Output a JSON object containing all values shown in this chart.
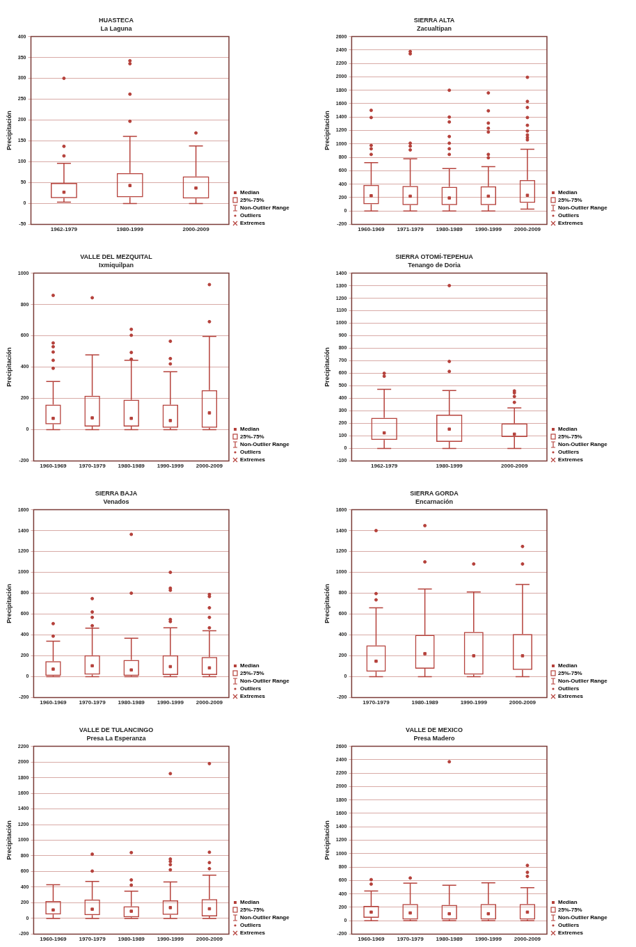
{
  "chart_data": [
    {
      "type": "box",
      "title": "HUASTECA",
      "subtitle": "La Laguna",
      "ylabel": "Precipitación",
      "color": "#b5413b",
      "grid": "y",
      "categories": [
        "1962-1979",
        "1980-1999",
        "2000-2009"
      ],
      "boxes": [
        {
          "low": 3,
          "q1": 13,
          "median": 27,
          "q3": 49,
          "high": 96,
          "outliers": [
            114,
            137,
            300
          ]
        },
        {
          "low": 0,
          "q1": 15,
          "median": 43,
          "q3": 73,
          "high": 161,
          "outliers": [
            197,
            262,
            335,
            342
          ]
        },
        {
          "low": 0,
          "q1": 12,
          "median": 37,
          "q3": 65,
          "high": 138,
          "outliers": [
            169
          ]
        }
      ],
      "ylim": [
        -50,
        400
      ],
      "yticks": [
        -50,
        0,
        50,
        100,
        150,
        200,
        250,
        300,
        350,
        400
      ],
      "annotations": [
        "Median",
        "25%-75%",
        "Non-Outlier Range",
        "Outliers",
        "Extremes"
      ]
    },
    {
      "type": "box",
      "title": "SIERRA ALTA",
      "subtitle": "Zacualtipan",
      "ylabel": "Precipitación",
      "color": "#b5413b",
      "grid": "y",
      "categories": [
        "1960-1969",
        "1971-1979",
        "1980-1989",
        "1990-1999",
        "2000-2009"
      ],
      "boxes": [
        {
          "low": 0,
          "q1": 100,
          "median": 227,
          "q3": 387,
          "high": 720,
          "outliers": [
            843,
            927,
            977,
            1393,
            1500
          ]
        },
        {
          "low": 0,
          "q1": 87,
          "median": 220,
          "q3": 373,
          "high": 777,
          "outliers": [
            910,
            967,
            1010,
            2343,
            2377
          ]
        },
        {
          "low": 0,
          "q1": 87,
          "median": 193,
          "q3": 360,
          "high": 633,
          "outliers": [
            843,
            927,
            1010,
            1110,
            1327,
            1400,
            1800
          ]
        },
        {
          "low": 0,
          "q1": 87,
          "median": 220,
          "q3": 367,
          "high": 660,
          "outliers": [
            793,
            843,
            1177,
            1233,
            1310,
            1493,
            1760
          ]
        },
        {
          "low": 27,
          "q1": 120,
          "median": 233,
          "q3": 460,
          "high": 920,
          "outliers": [
            1060,
            1093,
            1133,
            1193,
            1277,
            1393,
            1543,
            1633,
            1993
          ]
        }
      ],
      "ylim": [
        -200,
        2600
      ],
      "yticks": [
        -200,
        0,
        200,
        400,
        600,
        800,
        1000,
        1200,
        1400,
        1600,
        1800,
        2000,
        2200,
        2400,
        2600
      ],
      "annotations": [
        "Median",
        "25%-75%",
        "Non-Outlier Range",
        "Outliers",
        "Extremes"
      ]
    },
    {
      "type": "box",
      "title": "VALLE DEL MEZQUITAL",
      "subtitle": "Ixmiquilpan",
      "ylabel": "Precipitación",
      "color": "#b5413b",
      "grid": "y",
      "categories": [
        "1960-1969",
        "1970-1979",
        "1980-1989",
        "1990-1999",
        "2000-2009"
      ],
      "boxes": [
        {
          "low": 0,
          "q1": 34,
          "median": 72,
          "q3": 160,
          "high": 308,
          "outliers": [
            392,
            443,
            496,
            530,
            554,
            858
          ]
        },
        {
          "low": 0,
          "q1": 20,
          "median": 75,
          "q3": 217,
          "high": 478,
          "outliers": [
            843
          ]
        },
        {
          "low": 0,
          "q1": 20,
          "median": 72,
          "q3": 191,
          "high": 443,
          "outliers": [
            450,
            493,
            603,
            641
          ]
        },
        {
          "low": 0,
          "q1": 12,
          "median": 58,
          "q3": 160,
          "high": 370,
          "outliers": [
            420,
            454,
            565
          ]
        },
        {
          "low": 0,
          "q1": 12,
          "median": 107,
          "q3": 252,
          "high": 596,
          "outliers": [
            690,
            927
          ]
        }
      ],
      "ylim": [
        -200,
        1000
      ],
      "yticks": [
        -200,
        0,
        200,
        400,
        600,
        800,
        1000
      ],
      "annotations": [
        "Median",
        "25%-75%",
        "Non-Outlier Range",
        "Outliers",
        "Extremes"
      ]
    },
    {
      "type": "box",
      "title": "SIERRA OTOMÍ-TEPEHUA",
      "subtitle": "Tenango de Doria",
      "ylabel": "Precipitación",
      "color": "#b5413b",
      "grid": "y",
      "categories": [
        "1962-1979",
        "1980-1999",
        "2000-2009"
      ],
      "boxes": [
        {
          "low": 0,
          "q1": 67,
          "median": 124,
          "q3": 244,
          "high": 472,
          "outliers": [
            577,
            600
          ]
        },
        {
          "low": 0,
          "q1": 53,
          "median": 154,
          "q3": 269,
          "high": 463,
          "outliers": [
            615,
            695,
            1301
          ]
        },
        {
          "low": 0,
          "q1": 91,
          "median": 114,
          "q3": 200,
          "high": 324,
          "outliers": [
            368,
            415,
            444,
            459
          ]
        }
      ],
      "ylim": [
        -100,
        1400
      ],
      "yticks": [
        -100,
        0,
        100,
        200,
        300,
        400,
        500,
        600,
        700,
        800,
        900,
        1000,
        1100,
        1200,
        1300,
        1400
      ],
      "annotations": [
        "Median",
        "25%-75%",
        "Non-Outlier Range",
        "Outliers",
        "Extremes"
      ]
    },
    {
      "type": "box",
      "title": "SIERRA BAJA",
      "subtitle": "Venados",
      "ylabel": "Precipitación",
      "color": "#b5413b",
      "grid": "y",
      "categories": [
        "1960-1969",
        "1970-1979",
        "1980-1989",
        "1990-1999",
        "2000-2009"
      ],
      "boxes": [
        {
          "low": 0,
          "q1": 8,
          "median": 72,
          "q3": 148,
          "high": 340,
          "outliers": [
            388,
            508
          ]
        },
        {
          "low": 0,
          "q1": 20,
          "median": 104,
          "q3": 204,
          "high": 464,
          "outliers": [
            488,
            568,
            620,
            748
          ]
        },
        {
          "low": 0,
          "q1": 8,
          "median": 64,
          "q3": 160,
          "high": 368,
          "outliers": [
            800,
            1364
          ]
        },
        {
          "low": 0,
          "q1": 16,
          "median": 96,
          "q3": 204,
          "high": 468,
          "outliers": [
            528,
            548,
            828,
            848,
            1000
          ]
        },
        {
          "low": 0,
          "q1": 16,
          "median": 84,
          "q3": 188,
          "high": 440,
          "outliers": [
            468,
            568,
            660,
            768,
            788
          ]
        }
      ],
      "ylim": [
        -200,
        1600
      ],
      "yticks": [
        -200,
        0,
        200,
        400,
        600,
        800,
        1000,
        1200,
        1400,
        1600
      ],
      "annotations": [
        "Median",
        "25%-75%",
        "Non-Outlier Range",
        "Outliers",
        "Extremes"
      ]
    },
    {
      "type": "box",
      "title": "SIERRA GORDA",
      "subtitle": "Encarnación",
      "ylabel": "Precipitación",
      "color": "#b5413b",
      "grid": "y",
      "categories": [
        "1970-1979",
        "1980-1989",
        "1990-1999",
        "2000-2009"
      ],
      "boxes": [
        {
          "low": 0,
          "q1": 48,
          "median": 148,
          "q3": 300,
          "high": 660,
          "outliers": [
            736,
            796,
            1400
          ]
        },
        {
          "low": 0,
          "q1": 76,
          "median": 220,
          "q3": 400,
          "high": 840,
          "outliers": [
            1100,
            1448
          ]
        },
        {
          "low": 0,
          "q1": 20,
          "median": 200,
          "q3": 428,
          "high": 812,
          "outliers": [
            1080
          ]
        },
        {
          "low": 0,
          "q1": 64,
          "median": 200,
          "q3": 408,
          "high": 884,
          "outliers": [
            1080,
            1248
          ]
        }
      ],
      "ylim": [
        -200,
        1600
      ],
      "yticks": [
        -200,
        0,
        200,
        400,
        600,
        800,
        1000,
        1200,
        1400,
        1600
      ],
      "annotations": [
        "Median",
        "25%-75%",
        "Non-Outlier Range",
        "Outliers",
        "Extremes"
      ]
    },
    {
      "type": "box",
      "title": "VALLE DE TULANCINGO",
      "subtitle": "Presa La Esperanza",
      "ylabel": "Precipitación",
      "color": "#b5413b",
      "grid": "y",
      "categories": [
        "1960-1969",
        "1970-1979",
        "1980-1989",
        "1990-1999",
        "2000-2009"
      ],
      "boxes": [
        {
          "low": 0,
          "q1": 51,
          "median": 108,
          "q3": 221,
          "high": 431
        },
        {
          "low": 0,
          "q1": 41,
          "median": 118,
          "q3": 241,
          "high": 472,
          "outliers": [
            605,
            821
          ]
        },
        {
          "low": 0,
          "q1": 15,
          "median": 92,
          "q3": 154,
          "high": 349,
          "outliers": [
            426,
            492,
            841
          ]
        },
        {
          "low": 0,
          "q1": 46,
          "median": 138,
          "q3": 231,
          "high": 467,
          "outliers": [
            621,
            687,
            728,
            759,
            1851
          ]
        },
        {
          "low": 0,
          "q1": 26,
          "median": 123,
          "q3": 246,
          "high": 554,
          "outliers": [
            636,
            713,
            846,
            1979
          ]
        }
      ],
      "ylim": [
        -200,
        2200
      ],
      "yticks": [
        -200,
        0,
        200,
        400,
        600,
        800,
        1000,
        1200,
        1400,
        1600,
        1800,
        2000,
        2200
      ],
      "annotations": [
        "Median",
        "25%-75%",
        "Non-Outlier Range",
        "Outliers",
        "Extremes"
      ]
    },
    {
      "type": "box",
      "title": "VALLE DE MEXICO",
      "subtitle": "Presa Madero",
      "ylabel": "Precipitación",
      "color": "#b5413b",
      "grid": "y",
      "categories": [
        "1960-1969",
        "1970-1979",
        "1980-1989",
        "1990-1999",
        "2000-2009"
      ],
      "boxes": [
        {
          "low": 0,
          "q1": 42,
          "median": 127,
          "q3": 218,
          "high": 442,
          "outliers": [
            545,
            612
          ]
        },
        {
          "low": 0,
          "q1": 18,
          "median": 115,
          "q3": 248,
          "high": 558,
          "outliers": [
            636
          ]
        },
        {
          "low": 0,
          "q1": 18,
          "median": 103,
          "q3": 236,
          "high": 527,
          "outliers": [
            2370
          ]
        },
        {
          "low": 0,
          "q1": 18,
          "median": 103,
          "q3": 248,
          "high": 564
        },
        {
          "low": 0,
          "q1": 18,
          "median": 127,
          "q3": 248,
          "high": 491,
          "outliers": [
            661,
            721,
            824
          ]
        }
      ],
      "ylim": [
        -200,
        2600
      ],
      "yticks": [
        -200,
        0,
        200,
        400,
        600,
        800,
        1000,
        1200,
        1400,
        1600,
        1800,
        2000,
        2200,
        2400,
        2600
      ],
      "annotations": [
        "Median",
        "25%-75%",
        "Non-Outlier Range",
        "Outliers",
        "Extremes"
      ]
    }
  ]
}
